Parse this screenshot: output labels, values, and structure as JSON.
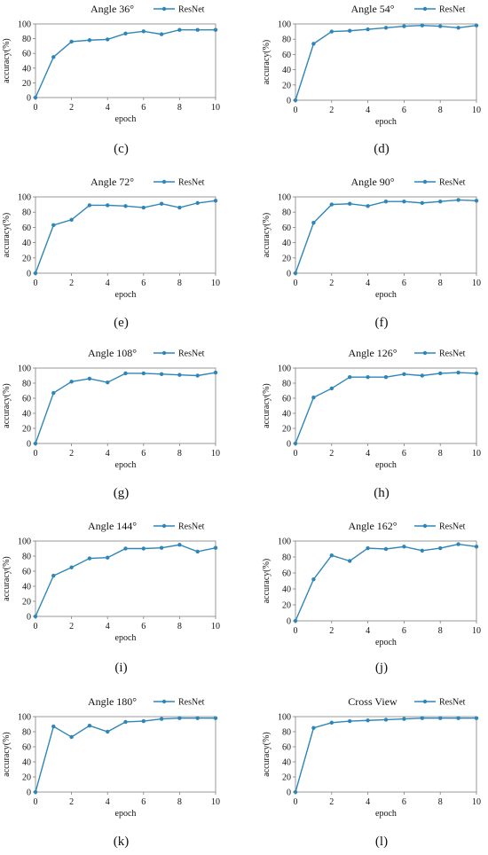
{
  "colors": {
    "series": "#2e86b8",
    "axis": "#7f7f7f",
    "text": "#111111"
  },
  "chart_data": [
    {
      "type": "line",
      "title": "Angle 36°",
      "caption": "(c)",
      "xlabel": "epoch",
      "ylabel": "accuracy(%)",
      "x": [
        0,
        1,
        2,
        3,
        4,
        5,
        6,
        7,
        8,
        9,
        10
      ],
      "xticks": [
        "0",
        "2",
        "4",
        "6",
        "8",
        "10"
      ],
      "yticks": [
        "0",
        "20",
        "40",
        "60",
        "80",
        "100"
      ],
      "ylim": [
        0,
        100
      ],
      "legend": "top-right",
      "grid": false,
      "series": [
        {
          "name": "ResNet",
          "values": [
            0,
            55,
            76,
            78,
            79,
            87,
            90,
            86,
            92,
            92,
            92
          ]
        }
      ]
    },
    {
      "type": "line",
      "title": "Angle 54°",
      "caption": "(d)",
      "xlabel": "epoch",
      "ylabel": "accuracy(%)",
      "x": [
        0,
        1,
        2,
        3,
        4,
        5,
        6,
        7,
        8,
        9,
        10
      ],
      "xticks": [
        "0",
        "2",
        "4",
        "6",
        "8",
        "10"
      ],
      "yticks": [
        "0",
        "20",
        "40",
        "60",
        "80",
        "100"
      ],
      "ylim": [
        0,
        100
      ],
      "legend": "top-right",
      "grid": false,
      "series": [
        {
          "name": "ResNet",
          "values": [
            0,
            74,
            90,
            91,
            93,
            95,
            97,
            98,
            97,
            95,
            98
          ]
        }
      ]
    },
    {
      "type": "line",
      "title": "Angle 72°",
      "caption": "(e)",
      "xlabel": "epoch",
      "ylabel": "accuracy(%)",
      "x": [
        0,
        1,
        2,
        3,
        4,
        5,
        6,
        7,
        8,
        9,
        10
      ],
      "xticks": [
        "0",
        "2",
        "4",
        "6",
        "8",
        "10"
      ],
      "yticks": [
        "0",
        "20",
        "40",
        "60",
        "80",
        "100"
      ],
      "ylim": [
        0,
        100
      ],
      "legend": "top-right",
      "grid": false,
      "series": [
        {
          "name": "ResNet",
          "values": [
            0,
            63,
            70,
            89,
            89,
            88,
            86,
            91,
            86,
            92,
            95
          ]
        }
      ]
    },
    {
      "type": "line",
      "title": "Angle 90°",
      "caption": "(f)",
      "xlabel": "epoch",
      "ylabel": "accuracy(%)",
      "x": [
        0,
        1,
        2,
        3,
        4,
        5,
        6,
        7,
        8,
        9,
        10
      ],
      "xticks": [
        "0",
        "2",
        "4",
        "6",
        "8",
        "10"
      ],
      "yticks": [
        "0",
        "20",
        "40",
        "60",
        "80",
        "100"
      ],
      "ylim": [
        0,
        100
      ],
      "legend": "top-right",
      "grid": false,
      "series": [
        {
          "name": "ResNet",
          "values": [
            0,
            66,
            90,
            91,
            88,
            94,
            94,
            92,
            94,
            96,
            95
          ]
        }
      ]
    },
    {
      "type": "line",
      "title": "Angle 108°",
      "caption": "(g)",
      "xlabel": "epoch",
      "ylabel": "accuracy(%)",
      "x": [
        0,
        1,
        2,
        3,
        4,
        5,
        6,
        7,
        8,
        9,
        10
      ],
      "xticks": [
        "0",
        "2",
        "4",
        "6",
        "8",
        "10"
      ],
      "yticks": [
        "0",
        "20",
        "40",
        "60",
        "80",
        "100"
      ],
      "ylim": [
        0,
        100
      ],
      "legend": "top-right",
      "grid": false,
      "series": [
        {
          "name": "ResNet",
          "values": [
            0,
            67,
            82,
            86,
            81,
            93,
            93,
            92,
            91,
            90,
            94
          ]
        }
      ]
    },
    {
      "type": "line",
      "title": "Angle 126°",
      "caption": "(h)",
      "xlabel": "epoch",
      "ylabel": "accuracy(%)",
      "x": [
        0,
        1,
        2,
        3,
        4,
        5,
        6,
        7,
        8,
        9,
        10
      ],
      "xticks": [
        "0",
        "2",
        "4",
        "6",
        "8",
        "10"
      ],
      "yticks": [
        "0",
        "20",
        "40",
        "60",
        "80",
        "100"
      ],
      "ylim": [
        0,
        100
      ],
      "legend": "top-right",
      "grid": false,
      "series": [
        {
          "name": "ResNet",
          "values": [
            0,
            61,
            73,
            88,
            88,
            88,
            92,
            90,
            93,
            94,
            93
          ]
        }
      ]
    },
    {
      "type": "line",
      "title": "Angle 144°",
      "caption": "(i)",
      "xlabel": "epoch",
      "ylabel": "accuracy(%)",
      "x": [
        0,
        1,
        2,
        3,
        4,
        5,
        6,
        7,
        8,
        9,
        10
      ],
      "xticks": [
        "0",
        "2",
        "4",
        "6",
        "8",
        "10"
      ],
      "yticks": [
        "0",
        "20",
        "40",
        "60",
        "80",
        "100"
      ],
      "ylim": [
        0,
        100
      ],
      "legend": "top-right",
      "grid": false,
      "series": [
        {
          "name": "ResNet",
          "values": [
            0,
            54,
            65,
            77,
            78,
            90,
            90,
            91,
            95,
            86,
            91
          ]
        }
      ]
    },
    {
      "type": "line",
      "title": "Angle 162°",
      "caption": "(j)",
      "xlabel": "epoch",
      "ylabel": "accuracy(%)",
      "x": [
        0,
        1,
        2,
        3,
        4,
        5,
        6,
        7,
        8,
        9,
        10
      ],
      "xticks": [
        "0",
        "2",
        "4",
        "6",
        "8",
        "10"
      ],
      "yticks": [
        "0",
        "20",
        "40",
        "60",
        "80",
        "100"
      ],
      "ylim": [
        0,
        100
      ],
      "legend": "top-right",
      "grid": false,
      "series": [
        {
          "name": "ResNet",
          "values": [
            0,
            52,
            82,
            75,
            91,
            90,
            93,
            88,
            91,
            96,
            93
          ]
        }
      ]
    },
    {
      "type": "line",
      "title": "Angle 180°",
      "caption": "(k)",
      "xlabel": "epoch",
      "ylabel": "accuracy(%)",
      "x": [
        0,
        1,
        2,
        3,
        4,
        5,
        6,
        7,
        8,
        9,
        10
      ],
      "xticks": [
        "0",
        "2",
        "4",
        "6",
        "8",
        "10"
      ],
      "yticks": [
        "0",
        "20",
        "40",
        "60",
        "80",
        "100"
      ],
      "ylim": [
        0,
        100
      ],
      "legend": "top-right",
      "grid": false,
      "series": [
        {
          "name": "ResNet",
          "values": [
            0,
            87,
            73,
            88,
            80,
            93,
            94,
            97,
            98,
            98,
            98
          ]
        }
      ]
    },
    {
      "type": "line",
      "title": "Cross View",
      "caption": "(l)",
      "xlabel": "epoch",
      "ylabel": "accuracy(%)",
      "x": [
        0,
        1,
        2,
        3,
        4,
        5,
        6,
        7,
        8,
        9,
        10
      ],
      "xticks": [
        "0",
        "2",
        "4",
        "6",
        "8",
        "10"
      ],
      "yticks": [
        "0",
        "20",
        "40",
        "60",
        "80",
        "100"
      ],
      "ylim": [
        0,
        100
      ],
      "legend": "top-right",
      "grid": false,
      "series": [
        {
          "name": "ResNet",
          "values": [
            0,
            85,
            92,
            94,
            95,
            96,
            97,
            98,
            98,
            98,
            98
          ]
        }
      ]
    }
  ]
}
